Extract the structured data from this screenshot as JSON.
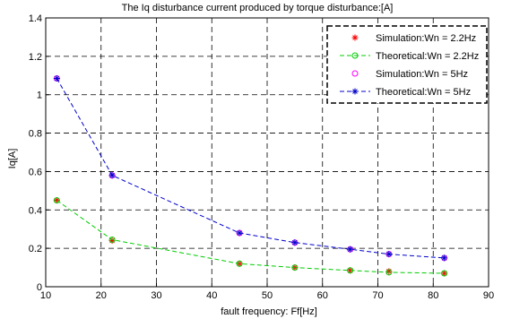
{
  "chart_data": {
    "type": "line",
    "title": "The Iq disturbance current produced by torque disturbance:[A]",
    "xlabel": "fault frequency: Ff[Hz]",
    "ylabel": "Iq[A]",
    "xlim": [
      10,
      90
    ],
    "ylim": [
      0,
      1.4
    ],
    "xticks": [
      "10",
      "20",
      "30",
      "40",
      "50",
      "60",
      "70",
      "80",
      "90"
    ],
    "yticks": [
      "0",
      "0.2",
      "0.4",
      "0.6",
      "0.8",
      "1",
      "1.2",
      "1.4"
    ],
    "grid": true,
    "grid_style": "dashed",
    "legend_position": "top-right",
    "series": [
      {
        "name": "Simulation:Wn = 2.2Hz",
        "color": "#ff0000",
        "marker": "asterisk",
        "line": "none",
        "x": [
          12,
          22,
          45,
          55,
          65,
          72,
          82
        ],
        "y": [
          0.45,
          0.24,
          0.12,
          0.1,
          0.085,
          0.08,
          0.07
        ]
      },
      {
        "name": "Theoretical:Wn = 2.2Hz",
        "color": "#00cc00",
        "marker": "circle",
        "line": "dashed",
        "x": [
          12,
          22,
          45,
          55,
          65,
          72,
          82
        ],
        "y": [
          0.45,
          0.245,
          0.12,
          0.1,
          0.085,
          0.075,
          0.07
        ]
      },
      {
        "name": "Simulation:Wn = 5Hz",
        "color": "#ff00ff",
        "marker": "circle",
        "line": "none",
        "x": [
          12,
          22,
          45,
          55,
          65,
          72,
          82
        ],
        "y": [
          1.085,
          0.58,
          0.28,
          0.23,
          0.195,
          0.17,
          0.15
        ]
      },
      {
        "name": "Theoretical:Wn = 5Hz",
        "color": "#0000cc",
        "marker": "asterisk",
        "line": "dashed",
        "x": [
          12,
          22,
          45,
          55,
          65,
          72,
          82
        ],
        "y": [
          1.085,
          0.58,
          0.28,
          0.23,
          0.195,
          0.17,
          0.15
        ]
      }
    ]
  }
}
